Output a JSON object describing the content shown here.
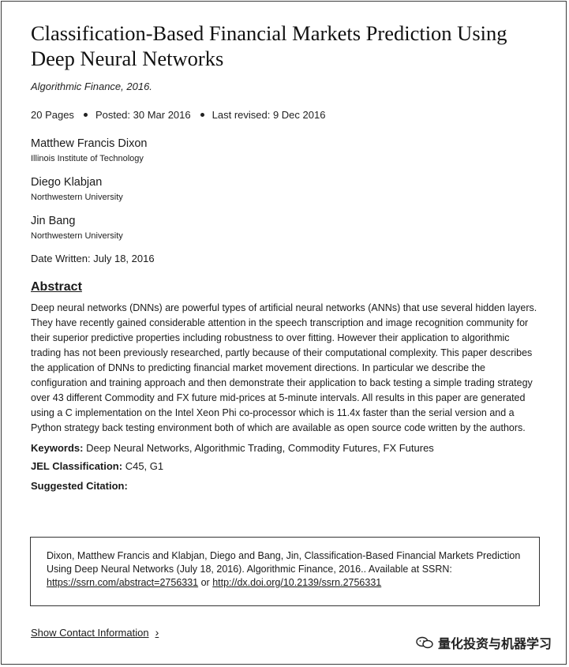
{
  "paper": {
    "title": "Classification-Based Financial Markets Prediction Using Deep Neural Networks",
    "journal": "Algorithmic Finance, 2016.",
    "pages": "20 Pages",
    "posted": "Posted: 30 Mar 2016",
    "revised": "Last revised: 9 Dec 2016",
    "date_written": "Date Written: July 18, 2016"
  },
  "authors": [
    {
      "name": "Matthew Francis Dixon",
      "affiliation": "Illinois Institute of Technology"
    },
    {
      "name": "Diego Klabjan",
      "affiliation": "Northwestern University"
    },
    {
      "name": "Jin Bang",
      "affiliation": "Northwestern University"
    }
  ],
  "abstract": {
    "heading": "Abstract",
    "text": "Deep neural networks (DNNs) are powerful types of artificial neural networks (ANNs) that use several hidden layers. They have recently gained considerable attention in the speech transcription and image recognition community for their superior predictive properties including robustness to over fitting. However their application to algorithmic trading has not been previously researched, partly because of their computational complexity. This paper describes the application of DNNs to predicting financial market movement directions. In particular we describe the configuration and training approach and then demonstrate their application to back testing a simple trading strategy over 43 different Commodity and FX future mid-prices at 5-minute intervals. All results in this paper are generated using a C implementation on the Intel Xeon Phi co-processor which is 11.4x faster than the serial version and a Python strategy back testing environment both of which are available as open source code written by the authors."
  },
  "keywords": {
    "label": "Keywords:",
    "value": "Deep Neural Networks, Algorithmic Trading, Commodity Futures, FX Futures"
  },
  "jel": {
    "label": "JEL Classification:",
    "value": "C45, G1"
  },
  "citation": {
    "label": "Suggested Citation:",
    "text": "Dixon, Matthew Francis and Klabjan, Diego and Bang, Jin, Classification-Based Financial Markets Prediction Using Deep Neural Networks (July 18, 2016). Algorithmic Finance, 2016.. Available at SSRN: ",
    "link1": "https://ssrn.com/abstract=2756331",
    "or": " or ",
    "link2": "http://dx.doi.org/10.2139/ssrn.2756331"
  },
  "contact": {
    "label": "Show Contact Information"
  },
  "watermark": {
    "text": "量化投资与机器学习",
    "icon": "wechat-icon"
  }
}
